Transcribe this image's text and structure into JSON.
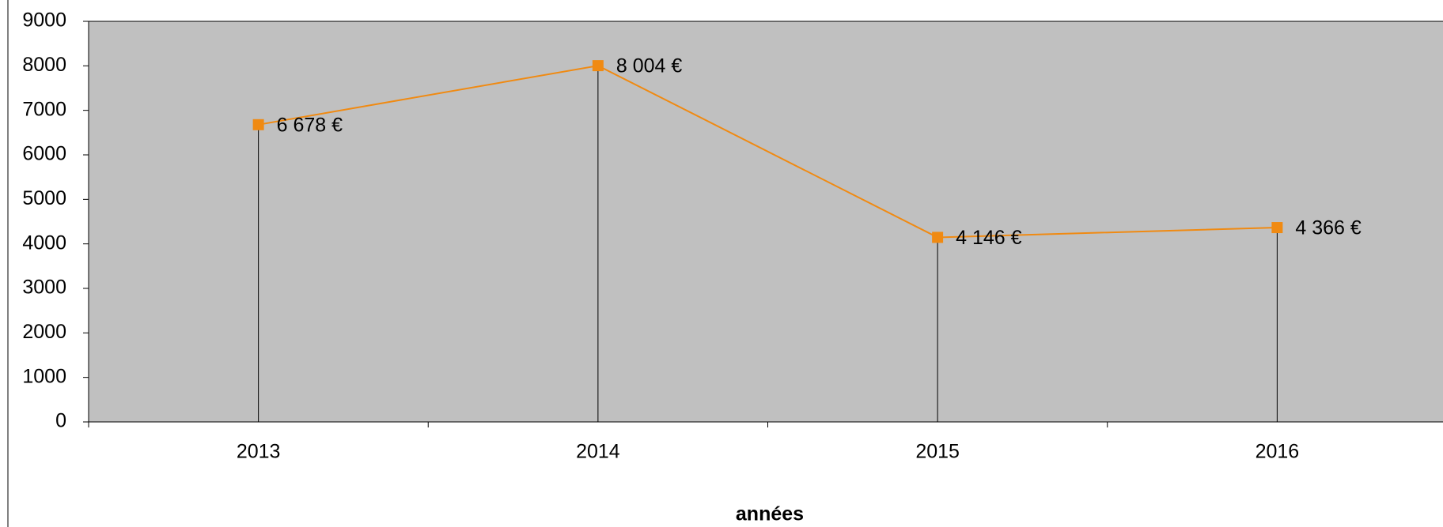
{
  "chart_data": {
    "type": "line",
    "x_label": "années",
    "categories": [
      "2013",
      "2014",
      "2015",
      "2016"
    ],
    "series": [
      {
        "name": "",
        "color": "#f08a12",
        "values": [
          6678,
          8004,
          4146,
          4366
        ],
        "value_labels": [
          "6 678 €",
          "8 004 €",
          "4 146 €",
          "4 366 €"
        ]
      }
    ],
    "ylim": [
      0,
      9000
    ],
    "yticks": [
      0,
      1000,
      2000,
      3000,
      4000,
      5000,
      6000,
      7000,
      8000,
      9000
    ],
    "plot_background": "#c0c0c0",
    "drop_lines": true
  }
}
